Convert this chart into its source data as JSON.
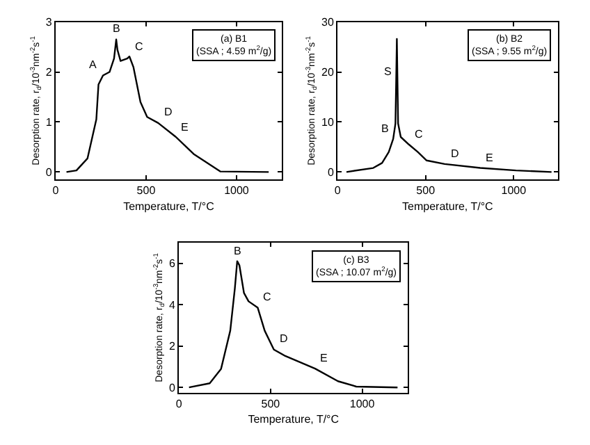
{
  "chart_data": [
    {
      "type": "line",
      "title": "(a) B1",
      "subtitle": "(SSA ; 4.59 m$^{2}$/g)",
      "xlabel": "Temperature, T/°C",
      "ylabel": "Desorption rate, r$_{d}$/10$^{-3}$nm$^{-2}$s$^{-1}$",
      "xlim": [
        0,
        1250
      ],
      "xticks": [
        0,
        500,
        1000
      ],
      "ylim": [
        -0.15,
        3
      ],
      "yticks": [
        0,
        1,
        2,
        3
      ],
      "marker": "none",
      "line_style": "solid",
      "series": [
        {
          "color": "#000000",
          "x": [
            60,
            115,
            176,
            225,
            237,
            262,
            298,
            323,
            335,
            342,
            359,
            396,
            408,
            430,
            469,
            506,
            567,
            665,
            763,
            910,
            1178
          ],
          "values": [
            0,
            0.03,
            0.27,
            1.05,
            1.75,
            1.93,
            2.0,
            2.27,
            2.65,
            2.44,
            2.22,
            2.27,
            2.31,
            2.1,
            1.4,
            1.1,
            0.98,
            0.7,
            0.36,
            0.01,
            0
          ]
        }
      ],
      "annotations": [
        {
          "text": "A",
          "x": 262,
          "y": 1.93
        },
        {
          "text": "B",
          "x": 335,
          "y": 2.65
        },
        {
          "text": "C",
          "x": 408,
          "y": 2.31
        },
        {
          "text": "D",
          "x": 567,
          "y": 0.98
        },
        {
          "text": "E",
          "x": 665,
          "y": 0.7
        }
      ]
    },
    {
      "type": "line",
      "title": "(b) B2",
      "subtitle": "(SSA ; 9.55 m$^{2}$/g)",
      "xlabel": "Temperature, T/°C",
      "ylabel": "Desorption rate, r$_{d}$/10$^{-3}$nm$^{-2}$s$^{-1}$",
      "xlim": [
        0,
        1250
      ],
      "xticks": [
        0,
        500,
        1000
      ],
      "ylim": [
        -1.5,
        30
      ],
      "yticks": [
        0,
        10,
        20,
        30
      ],
      "marker": "none",
      "line_style": "solid",
      "series": [
        {
          "color": "#000000",
          "x": [
            51,
            203,
            253,
            291,
            316,
            329,
            333,
            337,
            344,
            359,
            405,
            456,
            506,
            608,
            810,
            1013,
            1215
          ],
          "values": [
            0,
            0.8,
            1.8,
            4,
            6.6,
            9.7,
            18,
            26.6,
            9.7,
            7,
            5.5,
            4,
            2.3,
            1.6,
            0.8,
            0.3,
            0
          ]
        }
      ],
      "annotations": [
        {
          "text": "S",
          "x": 333,
          "y": 18
        },
        {
          "text": "B",
          "x": 316,
          "y": 6.6
        },
        {
          "text": "C",
          "x": 405,
          "y": 5.5
        },
        {
          "text": "D",
          "x": 608,
          "y": 1.6
        },
        {
          "text": "E",
          "x": 810,
          "y": 0.8
        }
      ]
    },
    {
      "type": "line",
      "title": "(c) B3",
      "subtitle": "(SSA ; 10.07 m$^{2}$/g)",
      "xlabel": "Temperature, T/°C",
      "ylabel": "Desorption rate, r$_{d}$/10$^{-3}$nm$^{-2}$s$^{-1}$",
      "xlim": [
        0,
        1250
      ],
      "xticks": [
        0,
        500,
        1000
      ],
      "ylim": [
        -0.26,
        7
      ],
      "yticks": [
        0,
        2,
        4,
        6
      ],
      "marker": "none",
      "line_style": "solid",
      "series": [
        {
          "color": "#000000",
          "x": [
            55,
            168,
            230,
            280,
            305,
            318,
            330,
            355,
            380,
            430,
            468,
            518,
            580,
            743,
            868,
            968,
            1193
          ],
          "values": [
            0,
            0.2,
            0.9,
            2.74,
            4.77,
            6.1,
            5.9,
            4.56,
            4.16,
            3.85,
            2.74,
            1.83,
            1.52,
            0.91,
            0.3,
            0.04,
            0
          ]
        }
      ],
      "annotations": [
        {
          "text": "B",
          "x": 318,
          "y": 6.1
        },
        {
          "text": "C",
          "x": 430,
          "y": 3.85
        },
        {
          "text": "D",
          "x": 518,
          "y": 1.83
        },
        {
          "text": "E",
          "x": 743,
          "y": 0.91
        }
      ]
    }
  ]
}
